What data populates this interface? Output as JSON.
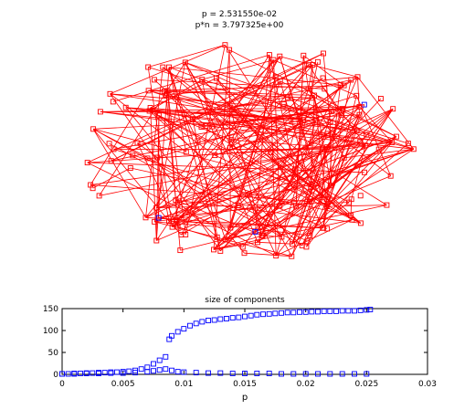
{
  "chart_data": [
    {
      "type": "network",
      "title_line1": "p = 2.531550e-02",
      "title_line2": "p*n = 3.797325e+00",
      "node_color": "#ff0000",
      "edge_color": "#ff0000",
      "highlight_node_color": "#0000ff"
    },
    {
      "type": "scatter",
      "title": "size of components",
      "xlabel": "p",
      "ylabel": "",
      "xlim": [
        0,
        0.03
      ],
      "ylim": [
        0,
        150
      ],
      "x_ticks": [
        "0",
        "0.005",
        "0.01",
        "0.015",
        "0.02",
        "0.025",
        "0.03"
      ],
      "y_ticks": [
        "0",
        "50",
        "100",
        "150"
      ],
      "marker": "square",
      "marker_color": "#0000ff",
      "series": [
        {
          "values": [
            [
              0.0,
              1
            ],
            [
              0.0005,
              1
            ],
            [
              0.001,
              2
            ],
            [
              0.0015,
              2
            ],
            [
              0.002,
              3
            ],
            [
              0.0025,
              3
            ],
            [
              0.003,
              4
            ],
            [
              0.0035,
              4
            ],
            [
              0.004,
              5
            ],
            [
              0.0045,
              5
            ],
            [
              0.005,
              6
            ],
            [
              0.0055,
              7
            ],
            [
              0.006,
              9
            ],
            [
              0.0065,
              12
            ],
            [
              0.007,
              16
            ],
            [
              0.0075,
              24
            ],
            [
              0.008,
              32
            ],
            [
              0.0085,
              40
            ],
            [
              0.0088,
              80
            ],
            [
              0.009,
              88
            ],
            [
              0.0095,
              97
            ],
            [
              0.01,
              104
            ],
            [
              0.0105,
              111
            ],
            [
              0.011,
              116
            ],
            [
              0.0115,
              120
            ],
            [
              0.012,
              123
            ],
            [
              0.0125,
              124
            ],
            [
              0.013,
              126
            ],
            [
              0.0135,
              127
            ],
            [
              0.014,
              129
            ],
            [
              0.0145,
              130
            ],
            [
              0.015,
              132
            ],
            [
              0.0155,
              134
            ],
            [
              0.016,
              136
            ],
            [
              0.0165,
              137
            ],
            [
              0.017,
              138
            ],
            [
              0.0175,
              139
            ],
            [
              0.018,
              140
            ],
            [
              0.0185,
              141
            ],
            [
              0.019,
              141
            ],
            [
              0.0195,
              142
            ],
            [
              0.02,
              142
            ],
            [
              0.0205,
              143
            ],
            [
              0.021,
              143
            ],
            [
              0.0215,
              144
            ],
            [
              0.022,
              144
            ],
            [
              0.0225,
              144
            ],
            [
              0.023,
              145
            ],
            [
              0.0235,
              145
            ],
            [
              0.024,
              145
            ],
            [
              0.0245,
              146
            ],
            [
              0.025,
              147
            ],
            [
              0.0253,
              148
            ]
          ]
        },
        {
          "values": [
            [
              0.0,
              1
            ],
            [
              0.001,
              1
            ],
            [
              0.002,
              2
            ],
            [
              0.003,
              2
            ],
            [
              0.004,
              3
            ],
            [
              0.005,
              3
            ],
            [
              0.006,
              4
            ],
            [
              0.007,
              6
            ],
            [
              0.0075,
              8
            ],
            [
              0.008,
              10
            ],
            [
              0.0085,
              12
            ],
            [
              0.009,
              9
            ],
            [
              0.0095,
              6
            ],
            [
              0.01,
              5
            ],
            [
              0.011,
              4
            ],
            [
              0.012,
              3
            ],
            [
              0.013,
              3
            ],
            [
              0.014,
              2
            ],
            [
              0.015,
              2
            ],
            [
              0.016,
              2
            ],
            [
              0.017,
              2
            ],
            [
              0.018,
              1
            ],
            [
              0.019,
              1
            ],
            [
              0.02,
              1
            ],
            [
              0.021,
              1
            ],
            [
              0.022,
              1
            ],
            [
              0.023,
              1
            ],
            [
              0.024,
              1
            ],
            [
              0.025,
              1
            ]
          ]
        }
      ]
    }
  ]
}
